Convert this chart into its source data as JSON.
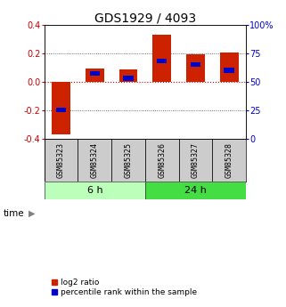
{
  "title": "GDS1929 / 4093",
  "samples": [
    "GSM85323",
    "GSM85324",
    "GSM85325",
    "GSM85326",
    "GSM85327",
    "GSM85328"
  ],
  "log2_ratio": [
    -0.37,
    0.09,
    0.085,
    0.33,
    0.19,
    0.205
  ],
  "percentile_rank": [
    25,
    57,
    53,
    68,
    65,
    60
  ],
  "groups": [
    {
      "label": "6 h",
      "samples": [
        0,
        1,
        2
      ],
      "color": "#bbffbb"
    },
    {
      "label": "24 h",
      "samples": [
        3,
        4,
        5
      ],
      "color": "#44dd44"
    }
  ],
  "bar_width": 0.55,
  "ylim_left": [
    -0.4,
    0.4
  ],
  "ylim_right": [
    0,
    100
  ],
  "yticks_left": [
    -0.4,
    -0.2,
    0.0,
    0.2,
    0.4
  ],
  "yticks_right": [
    0,
    25,
    50,
    75,
    100
  ],
  "left_color": "#cc0000",
  "right_color": "#0000cc",
  "bar_red": "#cc2200",
  "bar_blue": "#0000cc",
  "zero_line_color": "#cc0000",
  "bg_color": "#ffffff",
  "sample_box_color": "#cccccc",
  "time_label": "time",
  "legend_red": "log2 ratio",
  "legend_blue": "percentile rank within the sample",
  "title_fontsize": 10,
  "tick_fontsize": 7,
  "sample_fontsize": 6,
  "group_fontsize": 8,
  "legend_fontsize": 6.5
}
